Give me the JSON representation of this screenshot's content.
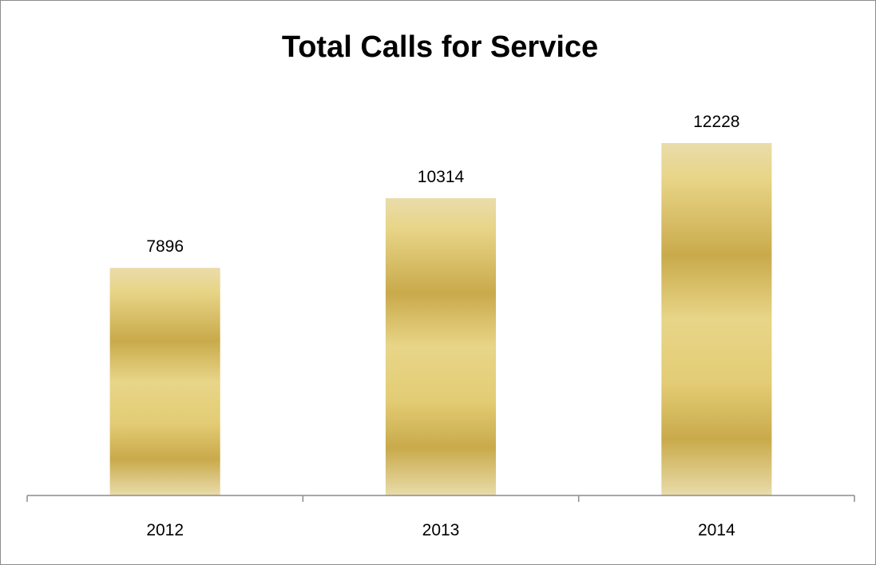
{
  "chart_data": {
    "type": "bar",
    "title": "Total Calls for Service",
    "xlabel": "",
    "ylabel": "",
    "categories": [
      "2012",
      "2013",
      "2014"
    ],
    "values": [
      7896,
      10314,
      12228
    ],
    "ylim": [
      0,
      14000
    ],
    "grid": false,
    "legend": "none",
    "bar_color": "#d9c16a"
  }
}
